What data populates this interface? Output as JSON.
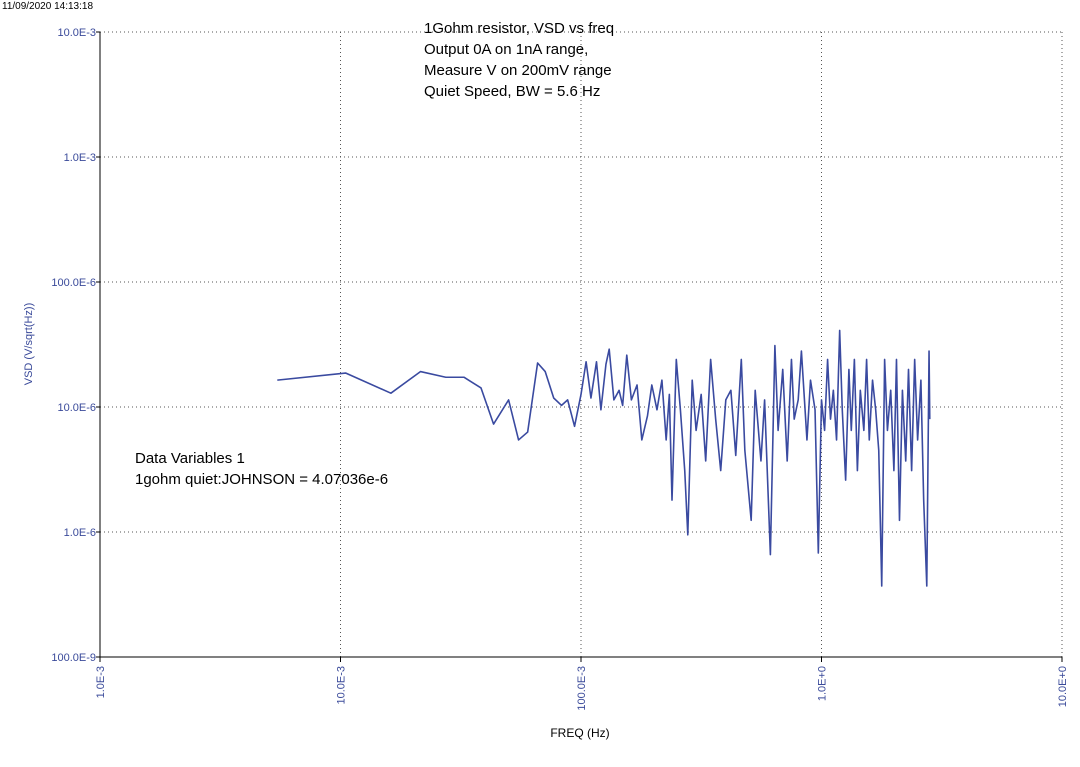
{
  "chart_data": {
    "type": "line",
    "timestamp": "11/09/2020 14:13:18",
    "title_lines": [
      "1Gohm resistor, VSD vs freq",
      "Output 0A on 1nA range,",
      "Measure V on 200mV range",
      "Quiet Speed, BW = 5.6 Hz"
    ],
    "note_lines": [
      "Data Variables 1",
      "1gohm quiet:JOHNSON = 4.07036e-6"
    ],
    "xlabel": "FREQ (Hz)",
    "ylabel": "VSD (V/sqrt(Hz))",
    "xscale": "log",
    "yscale": "log",
    "grid": true,
    "color": "#3a4aa0",
    "xlim": [
      0.001,
      10
    ],
    "ylim": [
      1e-07,
      0.01
    ],
    "xticks": [
      {
        "value": 0.001,
        "label": "1.0E-3"
      },
      {
        "value": 0.01,
        "label": "10.0E-3"
      },
      {
        "value": 0.1,
        "label": "100.0E-3"
      },
      {
        "value": 1,
        "label": "1.0E+0"
      },
      {
        "value": 10,
        "label": "10.0E+0"
      }
    ],
    "yticks": [
      {
        "value": 1e-07,
        "label": "100.0E-9"
      },
      {
        "value": 1e-06,
        "label": "1.0E-6"
      },
      {
        "value": 1e-05,
        "label": "10.0E-6"
      },
      {
        "value": 0.0001,
        "label": "100.0E-6"
      },
      {
        "value": 0.001,
        "label": "1.0E-3"
      },
      {
        "value": 0.01,
        "label": "10.0E-3"
      }
    ],
    "x": [
      0.00546,
      0.0105,
      0.0162,
      0.0215,
      0.0274,
      0.0326,
      0.0384,
      0.0433,
      0.05,
      0.055,
      0.06,
      0.066,
      0.071,
      0.077,
      0.083,
      0.088,
      0.094,
      0.1,
      0.105,
      0.11,
      0.116,
      0.121,
      0.127,
      0.131,
      0.137,
      0.144,
      0.149,
      0.155,
      0.162,
      0.171,
      0.179,
      0.189,
      0.197,
      0.207,
      0.217,
      0.226,
      0.233,
      0.239,
      0.249,
      0.259,
      0.27,
      0.278,
      0.29,
      0.301,
      0.316,
      0.33,
      0.346,
      0.363,
      0.381,
      0.4,
      0.42,
      0.44,
      0.464,
      0.48,
      0.51,
      0.53,
      0.56,
      0.58,
      0.613,
      0.64,
      0.66,
      0.69,
      0.72,
      0.75,
      0.77,
      0.8,
      0.825,
      0.87,
      0.9,
      0.94,
      0.97,
      1.0,
      1.03,
      1.06,
      1.09,
      1.12,
      1.155,
      1.19,
      1.22,
      1.26,
      1.3,
      1.33,
      1.37,
      1.41,
      1.45,
      1.5,
      1.54,
      1.58,
      1.63,
      1.68,
      1.73,
      1.78,
      1.83,
      1.88,
      1.94,
      2.0,
      2.05,
      2.11,
      2.17,
      2.24,
      2.3,
      2.37,
      2.44,
      2.51,
      2.59,
      2.66,
      2.74,
      2.8,
      2.82
    ],
    "values": [
      1.64e-05,
      1.87e-05,
      1.29e-05,
      1.92e-05,
      1.73e-05,
      1.73e-05,
      1.42e-05,
      7.3e-06,
      1.14e-05,
      5.45e-06,
      6.3e-06,
      2.25e-05,
      1.92e-05,
      1.18e-05,
      1.03e-05,
      1.14e-05,
      7e-06,
      1.26e-05,
      2.3e-05,
      1.18e-05,
      2.3e-05,
      9.5e-06,
      2.2e-05,
      2.9e-05,
      1.14e-05,
      1.36e-05,
      1.03e-05,
      2.6e-05,
      1.14e-05,
      1.5e-05,
      5.45e-06,
      8.5e-06,
      1.5e-05,
      9.5e-06,
      1.64e-05,
      5.45e-06,
      1.26e-05,
      1.8e-06,
      2.4e-05,
      9.5e-06,
      3.1e-06,
      9.5e-07,
      1.64e-05,
      6.5e-06,
      1.26e-05,
      3.7e-06,
      2.4e-05,
      8e-06,
      3.1e-06,
      1.14e-05,
      1.36e-05,
      4.1e-06,
      2.4e-05,
      4.5e-06,
      1.24e-06,
      1.36e-05,
      3.7e-06,
      1.14e-05,
      6.6e-07,
      3.1e-05,
      6.5e-06,
      2e-05,
      3.7e-06,
      2.4e-05,
      8e-06,
      1.14e-05,
      2.8e-05,
      5.45e-06,
      1.64e-05,
      9.5e-06,
      6.8e-07,
      1.14e-05,
      6.5e-06,
      2.4e-05,
      8e-06,
      1.36e-05,
      5.45e-06,
      4.1e-05,
      9.5e-06,
      2.6e-06,
      2e-05,
      6.5e-06,
      2.4e-05,
      3.1e-06,
      1.36e-05,
      6.5e-06,
      2.4e-05,
      5.45e-06,
      1.64e-05,
      9.5e-06,
      4.5e-06,
      3.7e-07,
      2.4e-05,
      6.5e-06,
      1.36e-05,
      3.1e-06,
      2.4e-05,
      1.24e-06,
      1.36e-05,
      3.7e-06,
      2e-05,
      3.1e-06,
      2.4e-05,
      5.45e-06,
      1.64e-05,
      1.8e-06,
      3.7e-07,
      2.8e-05,
      8e-06
    ]
  }
}
